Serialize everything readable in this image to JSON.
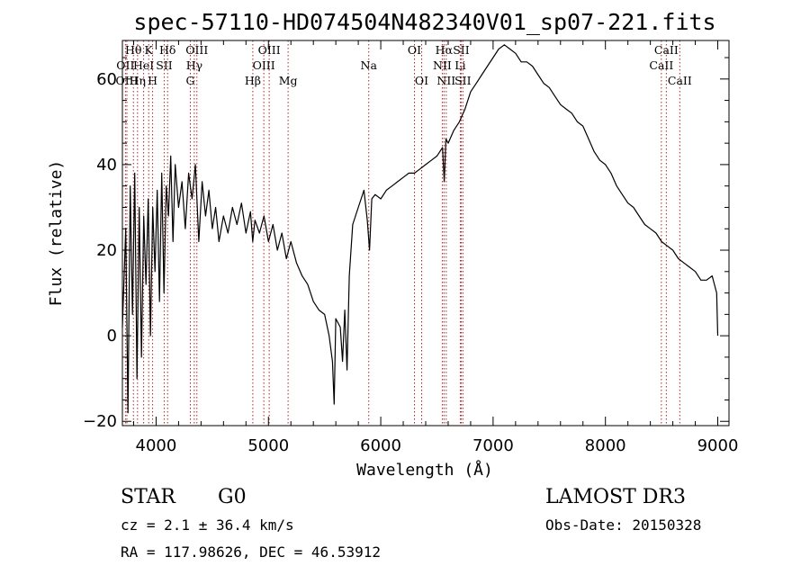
{
  "chart_data": {
    "type": "line",
    "title": "spec-57110-HD074504N482340V01_sp07-221.fits",
    "xlabel": "Wavelength (Å)",
    "ylabel": "Flux (relative)",
    "xlim": [
      3700,
      9100
    ],
    "ylim": [
      -21,
      69
    ],
    "xticks": [
      4000,
      5000,
      6000,
      7000,
      8000,
      9000
    ],
    "xtick_labels": [
      "4000",
      "5000",
      "6000",
      "7000",
      "8000",
      "9000"
    ],
    "yticks": [
      -20,
      0,
      20,
      40,
      60
    ],
    "ytick_labels": [
      "−20",
      "0",
      "20",
      "40",
      "60"
    ],
    "grid": false,
    "series": [
      {
        "color": "#000000",
        "x": [
          3700,
          3730,
          3750,
          3770,
          3790,
          3810,
          3830,
          3850,
          3870,
          3890,
          3910,
          3930,
          3950,
          3970,
          3990,
          4010,
          4030,
          4050,
          4070,
          4090,
          4110,
          4130,
          4150,
          4170,
          4200,
          4230,
          4260,
          4290,
          4320,
          4350,
          4380,
          4410,
          4440,
          4470,
          4500,
          4530,
          4560,
          4600,
          4640,
          4680,
          4720,
          4760,
          4800,
          4840,
          4860,
          4880,
          4920,
          4960,
          5000,
          5040,
          5080,
          5120,
          5160,
          5200,
          5250,
          5300,
          5350,
          5400,
          5450,
          5500,
          5540,
          5570,
          5585,
          5600,
          5640,
          5660,
          5680,
          5700,
          5720,
          5750,
          5800,
          5850,
          5880,
          5900,
          5920,
          5950,
          6000,
          6050,
          6100,
          6150,
          6200,
          6250,
          6300,
          6350,
          6400,
          6450,
          6500,
          6550,
          6565,
          6580,
          6600,
          6650,
          6700,
          6750,
          6800,
          6850,
          6900,
          6950,
          7000,
          7050,
          7100,
          7150,
          7200,
          7250,
          7300,
          7350,
          7400,
          7450,
          7500,
          7550,
          7600,
          7650,
          7700,
          7750,
          7800,
          7850,
          7900,
          7950,
          8000,
          8050,
          8100,
          8150,
          8200,
          8250,
          8300,
          8350,
          8400,
          8450,
          8500,
          8550,
          8600,
          8650,
          8700,
          8750,
          8800,
          8850,
          8900,
          8950,
          8990,
          9000
        ],
        "y": [
          2,
          25,
          -18,
          35,
          5,
          38,
          -10,
          30,
          -5,
          28,
          12,
          32,
          0,
          30,
          15,
          34,
          8,
          38,
          10,
          35,
          28,
          42,
          22,
          40,
          30,
          36,
          25,
          38,
          32,
          40,
          22,
          36,
          28,
          34,
          25,
          30,
          22,
          28,
          24,
          30,
          26,
          31,
          24,
          29,
          22,
          27,
          24,
          28,
          22,
          26,
          20,
          24,
          18,
          22,
          17,
          14,
          12,
          8,
          6,
          5,
          0,
          -6,
          -16,
          4,
          2,
          -6,
          6,
          -8,
          14,
          26,
          30,
          34,
          27,
          20,
          32,
          33,
          32,
          34,
          35,
          36,
          37,
          38,
          38,
          39,
          40,
          41,
          42,
          44,
          36,
          46,
          45,
          48,
          50,
          53,
          57,
          59,
          61,
          63,
          65,
          67,
          68,
          67,
          66,
          64,
          64,
          63,
          61,
          59,
          58,
          56,
          54,
          53,
          52,
          50,
          49,
          46,
          43,
          41,
          40,
          38,
          35,
          33,
          31,
          30,
          28,
          26,
          25,
          24,
          22,
          21,
          20,
          18,
          17,
          16,
          15,
          13,
          13,
          14,
          10,
          0
        ]
      }
    ],
    "line_markers": [
      {
        "label": "Hθ",
        "wavelength": 3798,
        "row": 0
      },
      {
        "label": "OII",
        "wavelength": 3727,
        "row": 1
      },
      {
        "label": "OIII",
        "wavelength": 3740,
        "row": 2
      },
      {
        "label": "Hη",
        "wavelength": 3835,
        "row": 2
      },
      {
        "label": "HeI",
        "wavelength": 3889,
        "row": 1
      },
      {
        "label": "K",
        "wavelength": 3934,
        "row": 0
      },
      {
        "label": "H",
        "wavelength": 3969,
        "row": 2
      },
      {
        "label": "Hδ",
        "wavelength": 4102,
        "row": 0
      },
      {
        "label": "SII",
        "wavelength": 4072,
        "row": 1
      },
      {
        "label": "OIII",
        "wavelength": 4363,
        "row": 0
      },
      {
        "label": "Hγ",
        "wavelength": 4340,
        "row": 1
      },
      {
        "label": "G",
        "wavelength": 4305,
        "row": 2
      },
      {
        "label": "Hβ",
        "wavelength": 4861,
        "row": 2
      },
      {
        "label": "OIII",
        "wavelength": 5007,
        "row": 0
      },
      {
        "label": "OIII",
        "wavelength": 4959,
        "row": 1
      },
      {
        "label": "Mg",
        "wavelength": 5175,
        "row": 2
      },
      {
        "label": "Na",
        "wavelength": 5893,
        "row": 1
      },
      {
        "label": "OI",
        "wavelength": 6300,
        "row": 0
      },
      {
        "label": "OI",
        "wavelength": 6364,
        "row": 2
      },
      {
        "label": "Hα",
        "wavelength": 6563,
        "row": 0
      },
      {
        "label": "SII",
        "wavelength": 6716,
        "row": 0
      },
      {
        "label": "NII",
        "wavelength": 6548,
        "row": 1
      },
      {
        "label": "Li",
        "wavelength": 6708,
        "row": 1
      },
      {
        "label": "NII",
        "wavelength": 6583,
        "row": 2
      },
      {
        "label": "SII",
        "wavelength": 6731,
        "row": 2
      },
      {
        "label": "CaII",
        "wavelength": 8542,
        "row": 0
      },
      {
        "label": "CaII",
        "wavelength": 8498,
        "row": 1
      },
      {
        "label": "CaII",
        "wavelength": 8662,
        "row": 2
      }
    ],
    "marker_color": "#b22222"
  },
  "info": {
    "object_class": "STAR",
    "subclass": "G0",
    "survey": "LAMOST DR3",
    "redshift_line": "cz = 2.1 ± 36.4 km/s",
    "obs_date_line": "Obs-Date: 20150328",
    "coords_line": "RA = 117.98626, DEC =  46.53912"
  }
}
